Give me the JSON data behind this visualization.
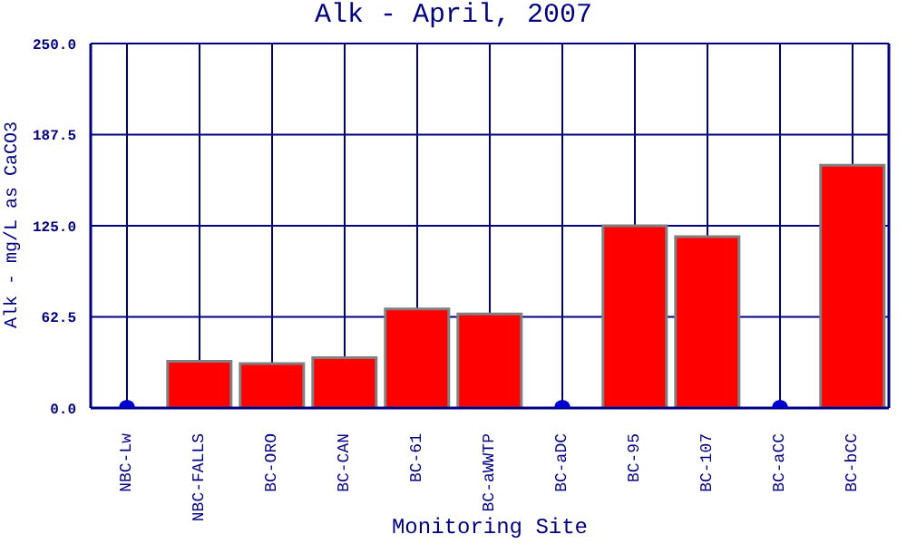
{
  "chart_data": {
    "type": "bar",
    "title": "Alk - April, 2007",
    "xlabel": "Monitoring Site",
    "ylabel": "Alk - mg/L as CaCO3",
    "categories": [
      "NBC-Lw",
      "NBC-FALLS",
      "BC-ORO",
      "BC-CAN",
      "BC-61",
      "BC-aWWTP",
      "BC-aDC",
      "BC-95",
      "BC-107",
      "BC-aCC",
      "BC-bCC"
    ],
    "series": [
      {
        "color": "#ff0000",
        "values": [
          0,
          32,
          30.5,
          34.5,
          68,
          64.5,
          0,
          125,
          117.5,
          0,
          166.5
        ]
      },
      {
        "type": "scatter",
        "color": "#0000cc",
        "x": [
          "NBC-Lw",
          "BC-aDC",
          "BC-aCC"
        ],
        "values": [
          0,
          0,
          0
        ]
      }
    ],
    "ylim": [
      0,
      250
    ],
    "yticks": [
      {
        "value": 0,
        "label": "0.0"
      },
      {
        "value": 62.5,
        "label": "62.5"
      },
      {
        "value": 125,
        "label": "125.0"
      },
      {
        "value": 187.5,
        "label": "187.5"
      },
      {
        "value": 250,
        "label": "250.0"
      }
    ],
    "grid": true,
    "legend": false,
    "marker": "circle"
  }
}
